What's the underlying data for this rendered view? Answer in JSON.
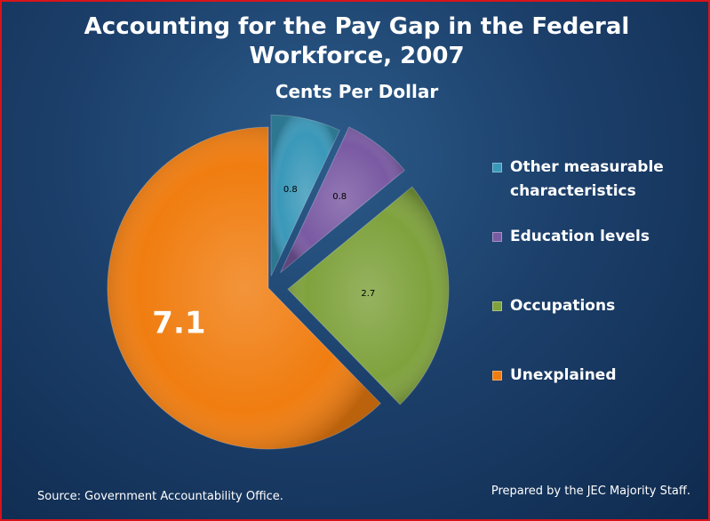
{
  "chart_data": {
    "type": "pie",
    "title": "Accounting for the Pay Gap in the Federal Workforce, 2007",
    "subtitle": "Cents Per Dollar",
    "slices": [
      {
        "label": "Other measurable characteristics",
        "value": 0.8,
        "value_label": "0.8",
        "color": "#3a98b9"
      },
      {
        "label": "Education levels",
        "value": 0.8,
        "value_label": "0.8",
        "color": "#7a5aa3"
      },
      {
        "label": "Occupations",
        "value": 2.7,
        "value_label": "2.7",
        "color": "#7fa23d"
      },
      {
        "label": "Unexplained",
        "value": 7.1,
        "value_label": "7.1",
        "color": "#f07d10"
      }
    ],
    "legend_position": "right"
  },
  "header": {
    "title_line1": "Accounting for the Pay Gap in the Federal",
    "title_line2": "Workforce, 2007",
    "subtitle": "Cents Per Dollar"
  },
  "legend": {
    "items": [
      {
        "lines": [
          "Other measurable",
          "characteristics"
        ],
        "color": "#3a98b9"
      },
      {
        "lines": [
          "Education levels"
        ],
        "color": "#7a5aa3"
      },
      {
        "lines": [
          "Occupations"
        ],
        "color": "#7fa23d"
      },
      {
        "lines": [
          "Unexplained"
        ],
        "color": "#f07d10"
      }
    ]
  },
  "footer": {
    "source": "Source: Government Accountability Office.",
    "prepared_by": "Prepared by the JEC Majority Staff."
  }
}
